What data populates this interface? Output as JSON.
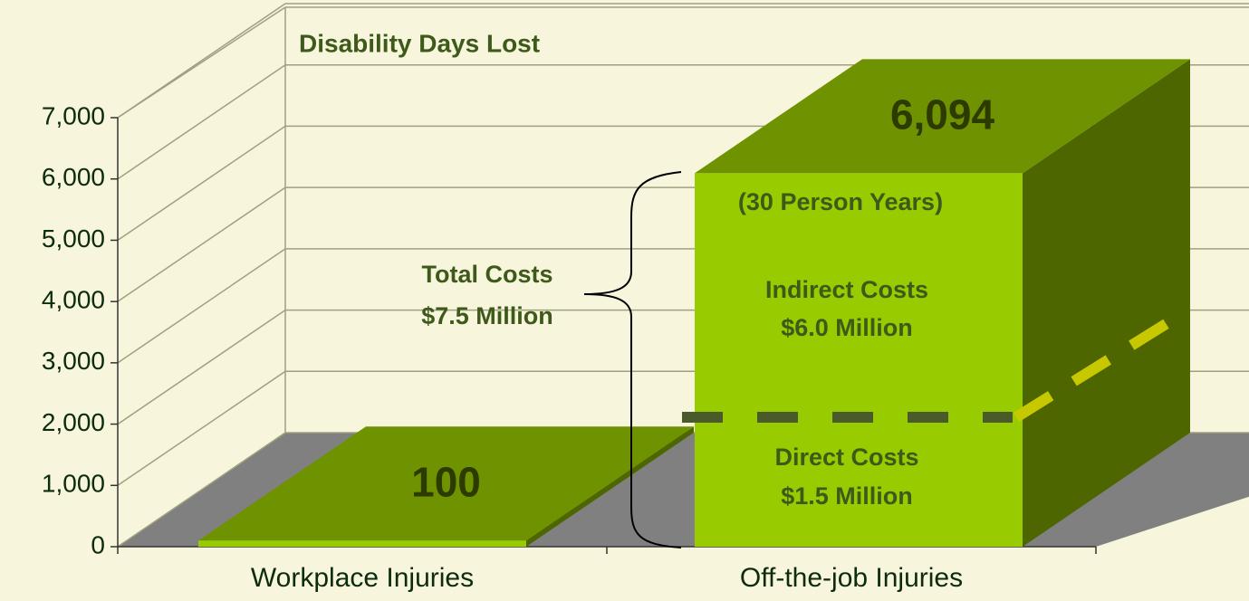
{
  "chart_data": {
    "type": "bar3d",
    "title": "Disability Days Lost",
    "categories": [
      "Workplace Injuries",
      "Off-the-job Injuries"
    ],
    "values": [
      100,
      6094
    ],
    "value_labels": [
      "100",
      "6,094"
    ],
    "colors": {
      "front": "#99cc00",
      "top": "#6f9300",
      "side": "#4d6600",
      "floor": "#808080"
    },
    "ylim": [
      0,
      7000
    ],
    "yticks": [
      0,
      {
        "value": 1000,
        "label": "1,000"
      },
      {
        "value": 2000,
        "label": "2,000"
      },
      {
        "value": 3000,
        "label": "3,000"
      },
      {
        "value": 4000,
        "label": "4,000"
      },
      {
        "value": 5000,
        "label": "5,000"
      },
      {
        "value": 6000,
        "label": "6,000"
      },
      {
        "value": 7000,
        "label": "7,000"
      }
    ],
    "grid": true,
    "annotations": [
      "(30 Person Years)",
      "Indirect Costs",
      "$6.0 Million",
      "Direct Costs",
      "$1.5 Million",
      "Total Costs",
      "$7.5 Million"
    ]
  }
}
